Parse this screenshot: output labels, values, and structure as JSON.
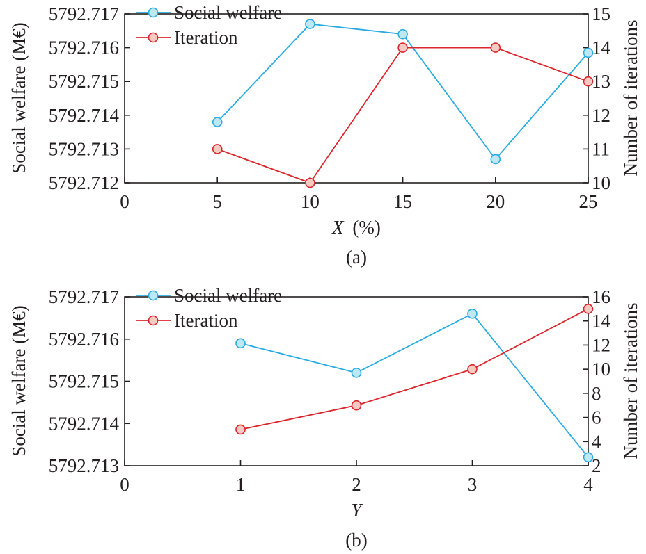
{
  "chart_data": [
    {
      "panel": "(a)",
      "type": "line",
      "xlabel": "X (%)",
      "xlabel_var": "X",
      "xlabel_rest": "(%)",
      "x_ticks": [
        "0",
        "5",
        "10",
        "15",
        "20",
        "25"
      ],
      "xlim": [
        0,
        25
      ],
      "ylabel_left": "Social welfare (M€)",
      "ylim_left": [
        5792.712,
        5792.717
      ],
      "ticks_left": [
        "5792.712",
        "5792.713",
        "5792.714",
        "5792.715",
        "5792.716",
        "5792.717"
      ],
      "ylabel_right": "Number of iterations",
      "ylim_right": [
        10,
        15
      ],
      "ticks_right": [
        "10",
        "11",
        "12",
        "13",
        "14",
        "15"
      ],
      "legend_position": "top-left",
      "series": [
        {
          "name": "Social welfare",
          "axis": "left",
          "color": "#29abe2",
          "fill": "#bde8f5",
          "x": [
            5,
            10,
            15,
            20,
            25
          ],
          "y": [
            5792.7138,
            5792.7167,
            5792.7164,
            5792.7127,
            5792.71585
          ]
        },
        {
          "name": "Iteration",
          "axis": "right",
          "color": "#d9262c",
          "fill": "#f7c9c3",
          "x": [
            5,
            10,
            15,
            20,
            25
          ],
          "y": [
            11,
            10,
            14,
            14,
            13
          ]
        }
      ]
    },
    {
      "panel": "(b)",
      "type": "line",
      "xlabel": "Y",
      "xlabel_var": "Y",
      "xlabel_rest": "",
      "x_ticks": [
        "0",
        "1",
        "2",
        "3",
        "4"
      ],
      "xlim": [
        0,
        4
      ],
      "ylabel_left": "Social welfare (M€)",
      "ylim_left": [
        5792.713,
        5792.717
      ],
      "ticks_left": [
        "5792.713",
        "5792.714",
        "5792.715",
        "5792.716",
        "5792.717"
      ],
      "ylabel_right": "Number of iterations",
      "ylim_right": [
        2,
        16
      ],
      "ticks_right": [
        "2",
        "4",
        "6",
        "8",
        "10",
        "12",
        "14",
        "16"
      ],
      "legend_position": "top-left",
      "series": [
        {
          "name": "Social welfare",
          "axis": "left",
          "color": "#29abe2",
          "fill": "#bde8f5",
          "x": [
            1,
            2,
            3,
            4
          ],
          "y": [
            5792.7159,
            5792.7152,
            5792.7166,
            5792.7132
          ]
        },
        {
          "name": "Iteration",
          "axis": "right",
          "color": "#d9262c",
          "fill": "#f7c9c3",
          "x": [
            1,
            2,
            3,
            4
          ],
          "y": [
            5,
            7,
            10,
            15
          ]
        }
      ]
    }
  ]
}
